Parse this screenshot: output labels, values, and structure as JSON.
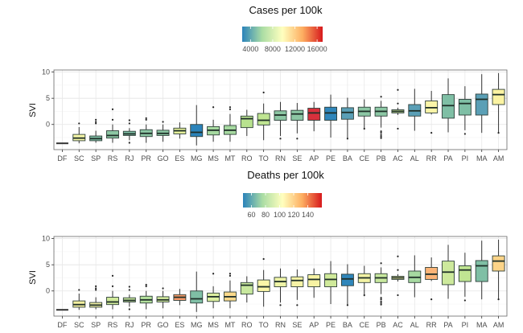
{
  "chart_data": [
    {
      "type": "boxplot",
      "title": "Cases per 100k",
      "ylabel": "SVI",
      "xlabel": "",
      "ylim": [
        -4.8,
        10.4
      ],
      "yticks": [
        0,
        5,
        10
      ],
      "grid": true,
      "legend": {
        "type": "colorbar",
        "placement": "top",
        "ticks": [
          "4000",
          "8000",
          "12000",
          "16000"
        ],
        "range": [
          2500,
          17000
        ],
        "tick_values": [
          4000,
          8000,
          12000,
          16000
        ]
      },
      "categories": [
        "DF",
        "SC",
        "SP",
        "RS",
        "RJ",
        "PR",
        "GO",
        "ES",
        "MG",
        "MS",
        "MT",
        "RO",
        "TO",
        "RN",
        "SE",
        "AP",
        "PE",
        "BA",
        "CE",
        "PB",
        "AC",
        "AL",
        "RR",
        "PA",
        "PI",
        "MA",
        "AM"
      ],
      "fill_colors": [
        "#3b3b3b",
        "#f7f7a8",
        "#7fbfa5",
        "#8cc7a4",
        "#7fbfa5",
        "#8cc7a4",
        "#8cc7a4",
        "#e6f09a",
        "#2b83ba",
        "#a6d9a0",
        "#a6d9a0",
        "#b8e28f",
        "#c0e592",
        "#8cc7a4",
        "#8cc7a4",
        "#d7303c",
        "#2f86bb",
        "#5a9fb6",
        "#8cc7a4",
        "#8cc7a4",
        "#d4ec9e",
        "#5a9fb6",
        "#faf5a8",
        "#7fbfa5",
        "#7fbfa5",
        "#5a9fb6",
        "#fbf3a2"
      ]
    },
    {
      "type": "boxplot",
      "title": "Deaths per 100k",
      "ylabel": "SVI",
      "xlabel": "",
      "ylim": [
        -4.8,
        10.4
      ],
      "yticks": [
        0,
        5,
        10
      ],
      "grid": true,
      "legend": {
        "type": "colorbar",
        "placement": "top",
        "ticks": [
          "60",
          "80",
          "100",
          "120",
          "140"
        ],
        "range": [
          48,
          160
        ],
        "tick_values": [
          60,
          80,
          100,
          120,
          140
        ]
      },
      "categories": [
        "DF",
        "SC",
        "SP",
        "RS",
        "RJ",
        "PR",
        "GO",
        "ES",
        "MG",
        "MS",
        "MT",
        "RO",
        "TO",
        "RN",
        "SE",
        "AP",
        "PE",
        "BA",
        "CE",
        "PB",
        "AC",
        "AL",
        "RR",
        "PA",
        "PI",
        "MA",
        "AM"
      ],
      "fill_colors": [
        "#3b3b3b",
        "#f4f0a0",
        "#f1f0a4",
        "#cfe89a",
        "#c8e89e",
        "#b3e09c",
        "#d4ec9e",
        "#f79a6a",
        "#7fbfa5",
        "#dcefa0",
        "#fbd98a",
        "#c8e89e",
        "#fbf6a8",
        "#eef3a6",
        "#f6f3a6",
        "#f7f3a3",
        "#d0ea9b",
        "#2f86bb",
        "#f2f2a4",
        "#c8e89e",
        "#f8f3a4",
        "#a6d9a0",
        "#fbb477",
        "#cde99c",
        "#c0e592",
        "#7fbfa5",
        "#fcd488"
      ]
    }
  ],
  "box_stats": {
    "note": "shared distribution per state: [min, q1, median, q3, max], outliers",
    "stats": [
      [
        -3.6,
        -3.6,
        -3.6,
        -3.6,
        -3.6
      ],
      [
        -3.6,
        -3.1,
        -2.6,
        -1.9,
        -0.5
      ],
      [
        -3.5,
        -3.1,
        -2.7,
        -2.2,
        -1.2
      ],
      [
        -3.5,
        -2.6,
        -2.1,
        -1.2,
        0.0
      ],
      [
        -3.0,
        -2.1,
        -1.8,
        -1.3,
        -0.7
      ],
      [
        -3.5,
        -2.3,
        -1.7,
        -1.0,
        0.0
      ],
      [
        -3.3,
        -2.1,
        -1.7,
        -1.1,
        0.0
      ],
      [
        -2.7,
        -1.8,
        -1.2,
        -0.7,
        0.4
      ],
      [
        -4.0,
        -2.3,
        -1.5,
        0.0,
        3.7
      ],
      [
        -3.3,
        -2.0,
        -1.1,
        -0.4,
        0.9
      ],
      [
        -3.3,
        -1.9,
        -1.1,
        -0.2,
        2.0
      ],
      [
        -2.2,
        -0.6,
        1.1,
        1.6,
        2.8
      ],
      [
        -3.0,
        -0.1,
        0.8,
        2.1,
        4.0
      ],
      [
        -2.2,
        0.8,
        1.8,
        2.6,
        4.3
      ],
      [
        -1.7,
        0.8,
        2.0,
        2.7,
        4.1
      ],
      [
        -1.3,
        0.8,
        2.2,
        3.1,
        4.3
      ],
      [
        -2.5,
        0.8,
        2.2,
        3.3,
        5.7
      ],
      [
        -2.6,
        1.0,
        2.3,
        3.2,
        5.1
      ],
      [
        -1.0,
        1.6,
        2.5,
        3.3,
        4.8
      ],
      [
        -0.6,
        1.6,
        2.5,
        3.3,
        4.5
      ],
      [
        1.8,
        2.2,
        2.5,
        2.8,
        3.2
      ],
      [
        -1.2,
        1.6,
        2.6,
        3.8,
        6.8
      ],
      [
        1.9,
        2.2,
        3.2,
        4.5,
        6.4
      ],
      [
        -1.5,
        1.2,
        3.6,
        5.7,
        8.8
      ],
      [
        -1.1,
        1.8,
        4.0,
        4.8,
        7.3
      ],
      [
        -1.6,
        1.8,
        4.8,
        5.8,
        9.6
      ],
      [
        -1.6,
        3.8,
        5.7,
        6.7,
        9.8
      ]
    ],
    "outliers": [
      [],
      [
        0.2
      ],
      [
        0.2,
        0.5,
        0.9
      ],
      [
        0.9,
        2.9
      ],
      [
        -3.5,
        0.2,
        0.8
      ],
      [
        0.9,
        1.2
      ],
      [
        0.5
      ],
      [],
      [],
      [
        3.3
      ],
      [
        2.9,
        3.3
      ],
      [],
      [
        6.1
      ],
      [
        -2.7
      ],
      [
        -2.7
      ],
      [],
      [],
      [
        -2.7
      ],
      [
        -0.8
      ],
      [
        -1.3,
        -1.6,
        -2.0,
        -2.3,
        -2.6,
        5.3
      ],
      [
        -0.8,
        4.0,
        6.6
      ],
      [],
      [
        -1.6
      ],
      [],
      [
        -1.8
      ],
      [],
      [
        -1.6
      ]
    ]
  }
}
